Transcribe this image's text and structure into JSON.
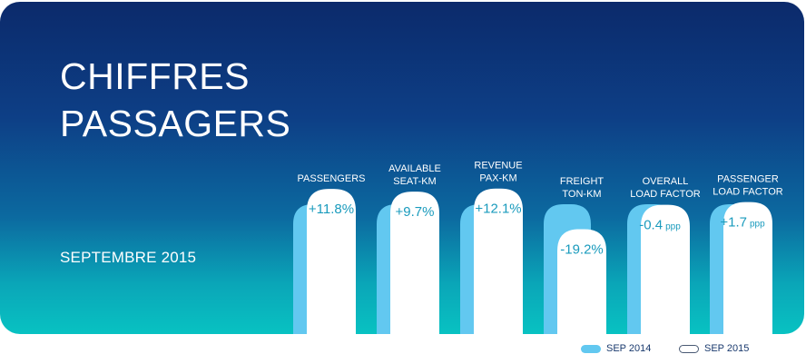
{
  "title_lines": [
    "CHIFFRES",
    "PASSAGERS"
  ],
  "subtitle": "SEPTEMBRE 2015",
  "colors": {
    "sep2014": "#62c8f0",
    "sep2015": "#ffffff",
    "value_text": "#1a9bbd",
    "label_text": "#ffffff"
  },
  "chart_data": {
    "type": "bar",
    "categories": [
      [
        "PASSENGERS"
      ],
      [
        "AVAILABLE",
        "SEAT-KM"
      ],
      [
        "REVENUE",
        "PAX-KM"
      ],
      [
        "FREIGHT",
        "TON-KM"
      ],
      [
        "OVERALL",
        "LOAD FACTOR"
      ],
      [
        "PASSENGER",
        "LOAD FACTOR"
      ]
    ],
    "series": [
      {
        "name": "SEP 2014",
        "values": [
          100,
          100,
          100,
          100,
          100,
          100
        ]
      },
      {
        "name": "SEP 2015",
        "values": [
          111.8,
          109.7,
          112.1,
          80.8,
          99.6,
          101.7
        ]
      }
    ],
    "data_labels": [
      {
        "value": "+11.8%",
        "unit": ""
      },
      {
        "value": "+9.7%",
        "unit": ""
      },
      {
        "value": "+12.1%",
        "unit": ""
      },
      {
        "value": "-19.2%",
        "unit": ""
      },
      {
        "value": "-0.4",
        "unit": "ppp"
      },
      {
        "value": "+1.7",
        "unit": "ppp"
      }
    ]
  },
  "legend": [
    {
      "label": "SEP 2014"
    },
    {
      "label": "SEP 2015"
    }
  ]
}
